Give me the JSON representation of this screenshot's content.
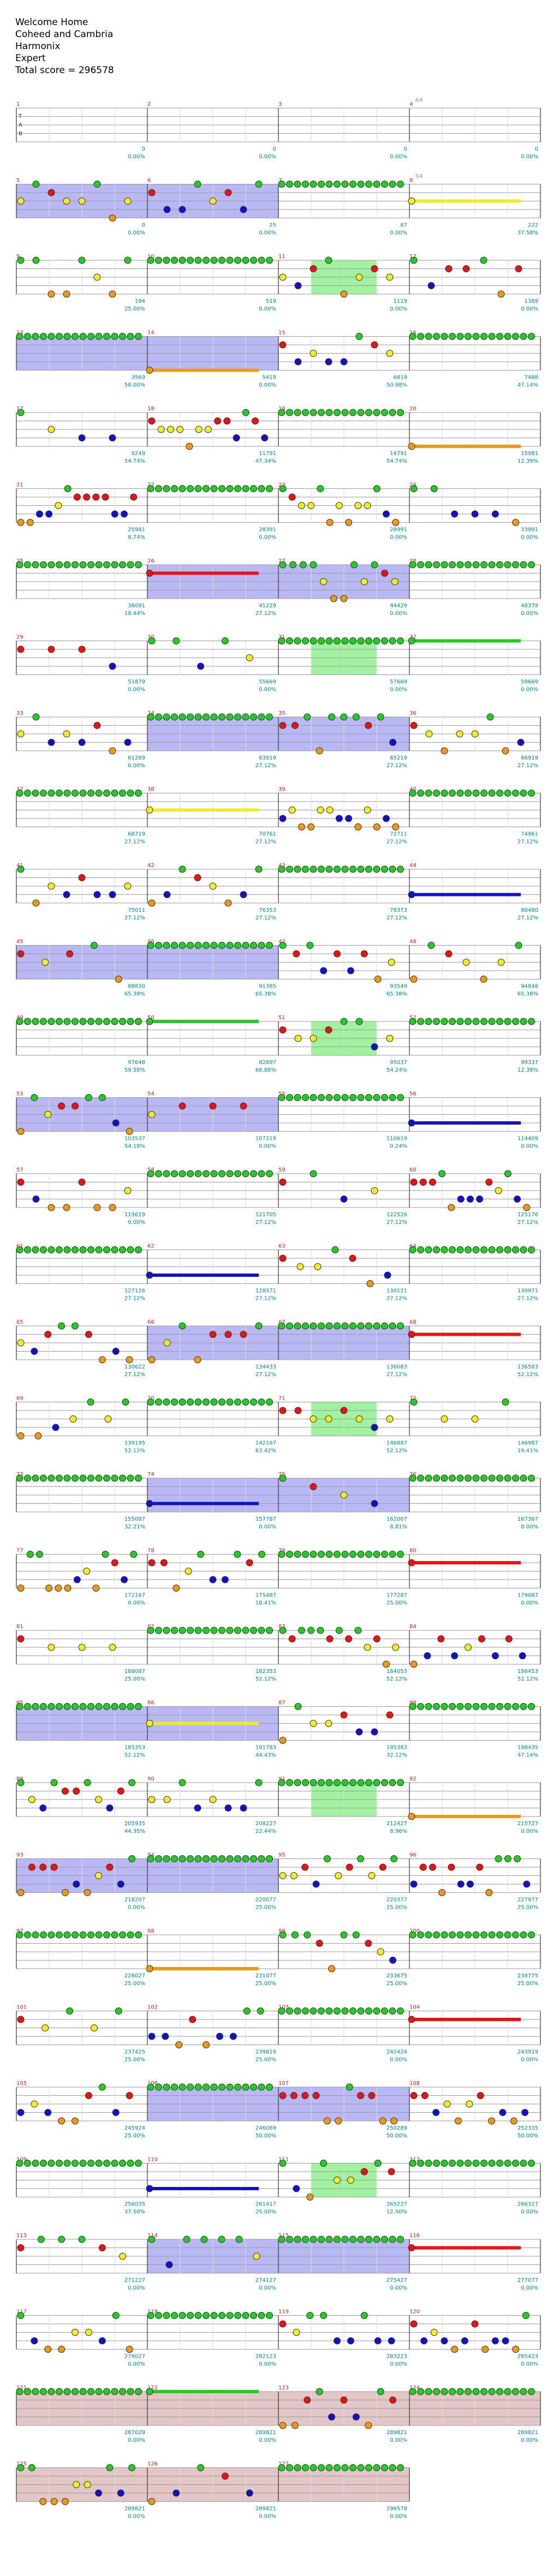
{
  "header": {
    "title": "Welcome Home",
    "artist": "Coheed and Cambria",
    "game": "Harmonix",
    "difficulty": "Expert",
    "total_score": "Total score = 296578"
  },
  "colors": {
    "green": "#22cc22",
    "red": "#ee1111",
    "yellow": "#eeee22",
    "blue": "#1111cc",
    "orange": "#ee9911",
    "star_power": "#8888ee",
    "solo": "#88ee88",
    "overlap": "#6699bb",
    "big_rock_ending": "#cc9999",
    "measure_label": "#cc2222",
    "score_label": "#008888",
    "tempo_label": "#888888"
  },
  "chart_data": {
    "type": "table",
    "title": "Welcome Home",
    "measure_rows": [
      {
        "first_measure": 1,
        "scores": [
          "0",
          "0",
          "0",
          "0"
        ],
        "percents": [
          "0.00%",
          "0.00%",
          "0.00%",
          "0.00%"
        ],
        "tempo": "4/4",
        "intro": true
      },
      {
        "first_measure": 5,
        "scores": [
          "0",
          "25",
          "87",
          "222"
        ],
        "percents": [
          "0.00%",
          "0.00%",
          "0.00%",
          "37.58%"
        ],
        "tempo": "3/4"
      },
      {
        "first_measure": 9,
        "scores": [
          "194",
          "519",
          "1119",
          "1369"
        ],
        "percents": [
          "25.00%",
          "0.00%",
          "0.00%",
          "0.00%"
        ]
      },
      {
        "first_measure": 13,
        "scores": [
          "3569",
          "5419",
          "6819",
          "7488"
        ],
        "percents": [
          "58.00%",
          "0.00%",
          "50.98%",
          "47.14%"
        ]
      },
      {
        "first_measure": 17,
        "scores": [
          "9249",
          "11791",
          "14791",
          "15981"
        ],
        "percents": [
          "54.74%",
          "47.34%",
          "54.74%",
          "12.39%"
        ]
      },
      {
        "first_measure": 21,
        "scores": [
          "25981",
          "28391",
          "28991",
          "33991"
        ],
        "percents": [
          "8.74%",
          "0.00%",
          "0.00%",
          "0.00%"
        ]
      },
      {
        "first_measure": 25,
        "scores": [
          "36091",
          "41229",
          "44429",
          "48379"
        ],
        "percents": [
          "18.44%",
          "27.12%",
          "0.00%",
          "0.00%"
        ]
      },
      {
        "first_measure": 29,
        "scores": [
          "51879",
          "55669",
          "57669",
          "59669"
        ],
        "percents": [
          "0.00%",
          "0.00%",
          "0.00%",
          "0.00%"
        ]
      },
      {
        "first_measure": 33,
        "scores": [
          "61269",
          "63919",
          "65219",
          "66919"
        ],
        "percents": [
          "0.00%",
          "27.12%",
          "27.12%",
          "27.12%"
        ]
      },
      {
        "first_measure": 37,
        "scores": [
          "68719",
          "70761",
          "72711",
          "74961"
        ],
        "percents": [
          "27.12%",
          "27.12%",
          "27.12%",
          "27.12%"
        ]
      },
      {
        "first_measure": 41,
        "scores": [
          "75011",
          "76353",
          "78373",
          "80480"
        ],
        "percents": [
          "27.12%",
          "27.12%",
          "27.12%",
          "27.12%"
        ]
      },
      {
        "first_measure": 45,
        "scores": [
          "88830",
          "91385",
          "93549",
          "94848"
        ],
        "percents": [
          "65.38%",
          "65.38%",
          "65.38%",
          "65.38%"
        ]
      },
      {
        "first_measure": 49,
        "scores": [
          "97648",
          "82897",
          "95037",
          "99337"
        ],
        "percents": [
          "59.58%",
          "66.88%",
          "54.24%",
          "12.38%"
        ]
      },
      {
        "first_measure": 53,
        "scores": [
          "103537",
          "107219",
          "110619",
          "114409"
        ],
        "percents": [
          "54.18%",
          "0.00%",
          "0.24%",
          "0.00%"
        ]
      },
      {
        "first_measure": 57,
        "scores": [
          "119619",
          "121705",
          "122526",
          "125176"
        ],
        "percents": [
          "0.00%",
          "27.12%",
          "27.12%",
          "27.12%"
        ]
      },
      {
        "first_measure": 61,
        "scores": [
          "127126",
          "128571",
          "130121",
          "130971"
        ],
        "percents": [
          "27.12%",
          "27.12%",
          "27.12%",
          "27.12%"
        ]
      },
      {
        "first_measure": 65,
        "scores": [
          "130622",
          "134433",
          "136083",
          "136583"
        ],
        "percents": [
          "27.12%",
          "27.12%",
          "27.12%",
          "52.12%"
        ]
      },
      {
        "first_measure": 69,
        "scores": [
          "139195",
          "142167",
          "146887",
          "146987"
        ],
        "percents": [
          "52.12%",
          "63.42%",
          "52.12%",
          "19.41%"
        ]
      },
      {
        "first_measure": 73,
        "scores": [
          "155087",
          "157787",
          "162007",
          "167367"
        ],
        "percents": [
          "32.21%",
          "0.00%",
          "8.81%",
          "0.00%"
        ]
      },
      {
        "first_measure": 77,
        "scores": [
          "172167",
          "175487",
          "177287",
          "179087"
        ],
        "percents": [
          "0.00%",
          "18.41%",
          "25.00%",
          "0.00%"
        ]
      },
      {
        "first_measure": 81,
        "scores": [
          "188087",
          "182353",
          "184053",
          "186453"
        ],
        "percents": [
          "25.00%",
          "52.12%",
          "52.12%",
          "52.12%"
        ]
      },
      {
        "first_measure": 85,
        "scores": [
          "185353",
          "191783",
          "195383",
          "198435"
        ],
        "percents": [
          "52.12%",
          "44.43%",
          "32.12%",
          "47.14%"
        ]
      },
      {
        "first_measure": 89,
        "scores": [
          "205935",
          "208227",
          "212427",
          "215727"
        ],
        "percents": [
          "44.35%",
          "22.44%",
          "8.96%",
          "0.00%"
        ]
      },
      {
        "first_measure": 93,
        "scores": [
          "218207",
          "220077",
          "220377",
          "227977"
        ],
        "percents": [
          "0.00%",
          "25.00%",
          "25.00%",
          "25.00%"
        ]
      },
      {
        "first_measure": 97,
        "scores": [
          "228027",
          "231077",
          "233675",
          "238775"
        ],
        "percents": [
          "25.00%",
          "25.00%",
          "25.00%",
          "25.00%"
        ]
      },
      {
        "first_measure": 101,
        "scores": [
          "237425",
          "239819",
          "242424",
          "243919"
        ],
        "percents": [
          "25.00%",
          "25.00%",
          "0.00%",
          "0.00%"
        ]
      },
      {
        "first_measure": 105,
        "scores": [
          "245924",
          "246069",
          "250289",
          "252335"
        ],
        "percents": [
          "25.00%",
          "50.00%",
          "50.00%",
          "50.00%"
        ]
      },
      {
        "first_measure": 109,
        "scores": [
          "256035",
          "261417",
          "265227",
          "266327"
        ],
        "percents": [
          "37.50%",
          "25.00%",
          "12.50%",
          "0.00%"
        ]
      },
      {
        "first_measure": 113,
        "scores": [
          "271227",
          "274127",
          "275427",
          "277077"
        ],
        "percents": [
          "0.00%",
          "0.00%",
          "0.00%",
          "0.00%"
        ]
      },
      {
        "first_measure": 117,
        "scores": [
          "279027",
          "282123",
          "283223",
          "285423"
        ],
        "percents": [
          "0.00%",
          "0.00%",
          "0.00%",
          "0.00%"
        ]
      },
      {
        "first_measure": 121,
        "scores": [
          "287029",
          "289821",
          "289821",
          "289821"
        ],
        "percents": [
          "0.00%",
          "0.00%",
          "0.00%",
          "0.00%"
        ]
      },
      {
        "first_measure": 125,
        "scores": [
          "289821",
          "289821",
          "296578"
        ],
        "percents": [
          "0.00%",
          "0.00%",
          "0.00%"
        ]
      }
    ]
  }
}
